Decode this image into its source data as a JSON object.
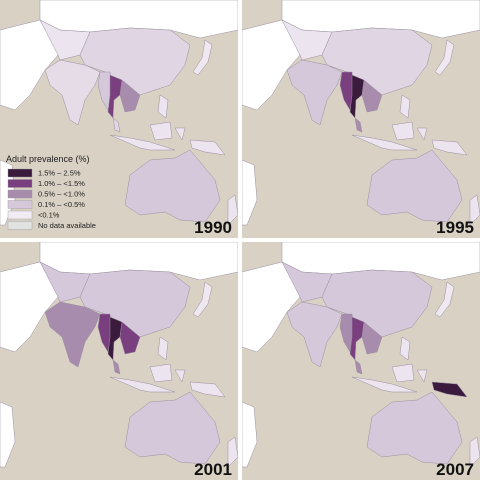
{
  "legend": {
    "title": "Adult prevalence (%)",
    "items": [
      {
        "label": "1.5%  –    2.5%",
        "color": "#3a1a3d"
      },
      {
        "label": "1.0%  – <1.5%",
        "color": "#7a3f7e"
      },
      {
        "label": "0.5%  – <1.0%",
        "color": "#a88cae"
      },
      {
        "label": "0.1%  – <0.5%",
        "color": "#d6c8db"
      },
      {
        "label": "<0.1%",
        "color": "#f2ebf3"
      },
      {
        "label": "No data available",
        "color": "#e2e2e2"
      }
    ]
  },
  "panels": [
    {
      "year": "1990"
    },
    {
      "year": "1995"
    },
    {
      "year": "2001"
    },
    {
      "year": "2007"
    }
  ]
}
